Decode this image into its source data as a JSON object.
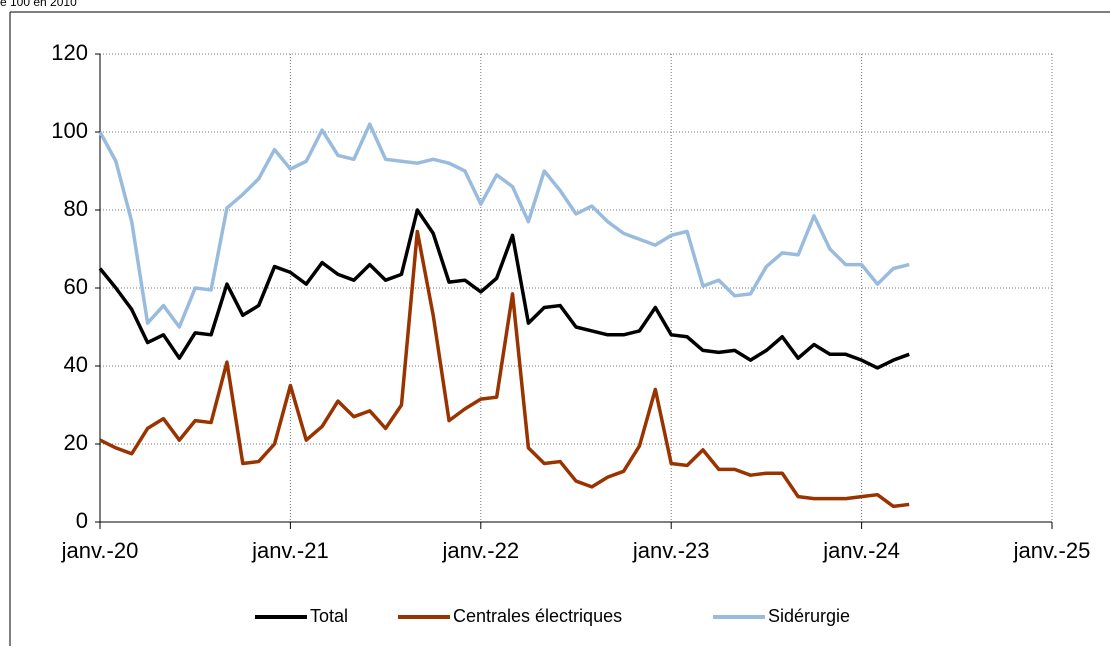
{
  "chart_data": {
    "type": "line",
    "subtitle": "e 100 en 2010",
    "x": [
      0,
      1,
      2,
      3,
      4,
      5,
      6,
      7,
      8,
      9,
      10,
      11,
      12,
      13,
      14,
      15,
      16,
      17,
      18,
      19,
      20,
      21,
      22,
      23,
      24,
      25,
      26,
      27,
      28,
      29,
      30,
      31,
      32,
      33,
      34,
      35,
      36,
      37,
      38,
      39,
      40,
      41,
      42,
      43,
      44,
      45,
      46,
      47,
      48,
      49,
      50,
      51
    ],
    "series": [
      {
        "name": "Total",
        "color": "#000000",
        "values": [
          65,
          60,
          54.5,
          46,
          48,
          42,
          48.5,
          48,
          61,
          53,
          55.5,
          65.5,
          64,
          61,
          66.5,
          63.5,
          62,
          66,
          62,
          63.5,
          80,
          74,
          61.5,
          62,
          59,
          62.5,
          73.5,
          51,
          55,
          55.5,
          50,
          49,
          48,
          48,
          49,
          55,
          48,
          47.5,
          44,
          43.5,
          44,
          41.5,
          44,
          47.5,
          42,
          45.5,
          43,
          43,
          41.5,
          39.5,
          41.5,
          43
        ]
      },
      {
        "name": "Centrales électriques",
        "color": "#993300",
        "values": [
          21,
          19,
          17.5,
          24,
          26.5,
          21,
          26,
          25.5,
          41,
          15,
          15.5,
          20,
          35,
          21,
          24.5,
          31,
          27,
          28.5,
          24,
          30,
          74.5,
          53,
          26,
          29,
          31.5,
          32,
          58.5,
          19,
          15,
          15.5,
          10.5,
          9,
          11.5,
          13,
          19.5,
          34,
          15,
          14.5,
          18.5,
          13.5,
          13.5,
          12,
          12.5,
          12.5,
          6.5,
          6,
          6,
          6,
          6.5,
          7,
          4,
          4.5
        ]
      },
      {
        "name": "Sidérurgie",
        "color": "#99bbdd",
        "values": [
          100,
          92.5,
          77,
          51,
          55.5,
          50,
          60,
          59.5,
          80.5,
          84,
          88,
          95.5,
          90.5,
          92.5,
          100.5,
          94,
          93,
          102,
          93,
          92.5,
          92,
          93,
          92,
          90,
          81.5,
          89,
          86,
          77,
          90,
          85,
          79,
          81,
          77,
          74,
          72.5,
          71,
          73.5,
          74.5,
          60.5,
          62,
          58,
          58.5,
          65.5,
          69,
          68.5,
          78.5,
          70,
          66,
          66,
          61,
          65,
          66
        ]
      }
    ],
    "xlim": [
      0,
      60
    ],
    "xticks": [
      {
        "value": 0,
        "label": "janv.-20"
      },
      {
        "value": 12,
        "label": "janv.-21"
      },
      {
        "value": 24,
        "label": "janv.-22"
      },
      {
        "value": 36,
        "label": "janv.-23"
      },
      {
        "value": 48,
        "label": "janv.-24"
      },
      {
        "value": 60,
        "label": "janv.-25"
      }
    ],
    "ylim": [
      0,
      120
    ],
    "yticks": [
      0,
      20,
      40,
      60,
      80,
      100,
      120
    ],
    "grid": true,
    "legend": "bottom"
  }
}
